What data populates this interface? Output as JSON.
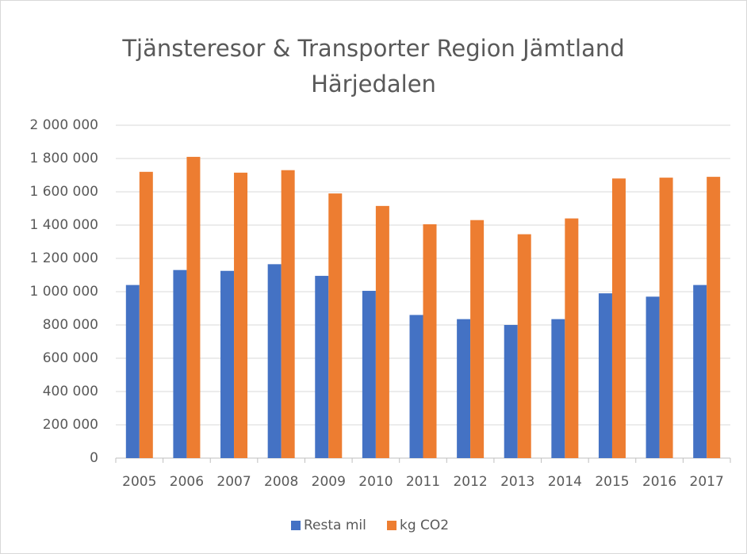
{
  "chart_data": {
    "type": "bar",
    "title": "Tjänsteresor & Transporter Region Jämtland Härjedalen",
    "categories": [
      "2005",
      "2006",
      "2007",
      "2008",
      "2009",
      "2010",
      "2011",
      "2012",
      "2013",
      "2014",
      "2015",
      "2016",
      "2017"
    ],
    "series": [
      {
        "name": "Resta mil",
        "color": "#4472c4",
        "values": [
          1040000,
          1130000,
          1125000,
          1165000,
          1095000,
          1005000,
          860000,
          835000,
          800000,
          835000,
          990000,
          970000,
          1040000
        ]
      },
      {
        "name": "kg CO2",
        "color": "#ed7d31",
        "values": [
          1720000,
          1810000,
          1715000,
          1730000,
          1590000,
          1515000,
          1405000,
          1430000,
          1345000,
          1440000,
          1680000,
          1685000,
          1690000
        ]
      }
    ],
    "ylim": [
      0,
      2000000
    ],
    "yticks": [
      0,
      {
        "value": 200000,
        "label": "200 000"
      },
      {
        "value": 400000,
        "label": "400 000"
      },
      {
        "value": 600000,
        "label": "600 000"
      },
      {
        "value": 800000,
        "label": "800 000"
      },
      {
        "value": 1000000,
        "label": "1 000 000"
      },
      {
        "value": 1200000,
        "label": "1 200 000"
      },
      {
        "value": 1400000,
        "label": "1 400 000"
      },
      {
        "value": 1600000,
        "label": "1 600 000"
      },
      {
        "value": 1800000,
        "label": "1 800 000"
      },
      {
        "value": 2000000,
        "label": "2 000 000"
      }
    ],
    "grid": true,
    "legend": "bottom"
  }
}
